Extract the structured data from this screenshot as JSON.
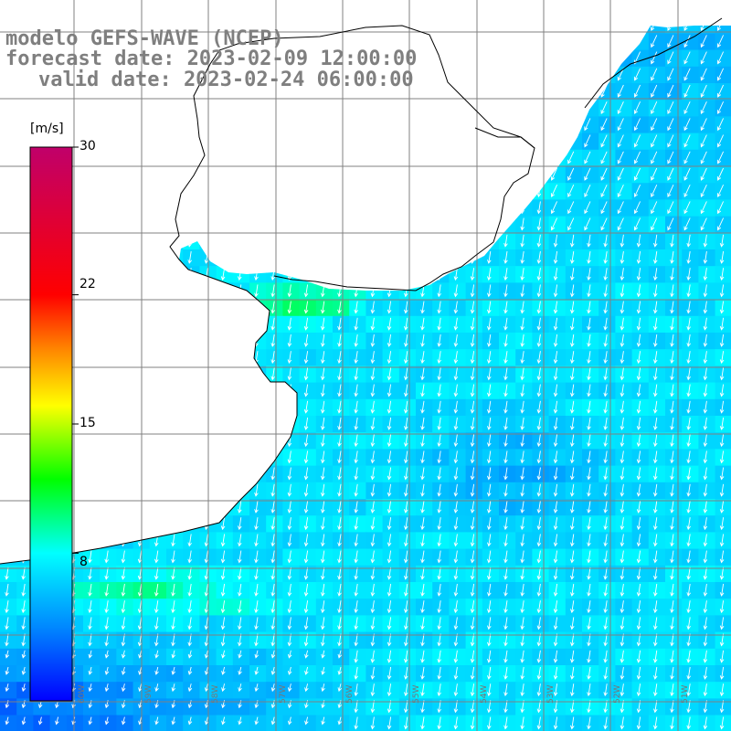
{
  "title": {
    "model": "modelo GEFS-WAVE (NCEP)",
    "forecast": "forecast date: 2023-02-09 12:00:00",
    "valid": "valid date: 2023-02-24 06:00:00"
  },
  "colorbar": {
    "unit": "[m/s]",
    "ticks": [
      {
        "value": 30,
        "label": "30"
      },
      {
        "value": 22,
        "label": "22"
      },
      {
        "value": 15,
        "label": "15"
      },
      {
        "value": 8,
        "label": "8"
      }
    ],
    "min": 0,
    "max": 30,
    "stops": [
      {
        "value": 0,
        "color": "#0000ff"
      },
      {
        "value": 4,
        "color": "#0088ff"
      },
      {
        "value": 8,
        "color": "#00ffff"
      },
      {
        "value": 12,
        "color": "#00ff00"
      },
      {
        "value": 16,
        "color": "#ffff00"
      },
      {
        "value": 19,
        "color": "#ff8800"
      },
      {
        "value": 22,
        "color": "#ff0000"
      },
      {
        "value": 30,
        "color": "#c0006a"
      }
    ]
  },
  "longitude_labels": [
    "60W",
    "59W",
    "58W",
    "57W",
    "56W",
    "55W",
    "54W",
    "53W",
    "52W",
    "51W",
    "50W"
  ],
  "field": {
    "variable": "wind speed and direction",
    "unit": "m/s",
    "sea_speed_typical": 7,
    "coastal_max_speed": 11,
    "southwest_min_speed": 3,
    "wind_direction": "from north, blowing south"
  },
  "colors": {
    "land": "#ffffff",
    "grid": "#808080",
    "coast": "#000000",
    "arrow": "#ffffff",
    "title": "#7f7f7f"
  }
}
